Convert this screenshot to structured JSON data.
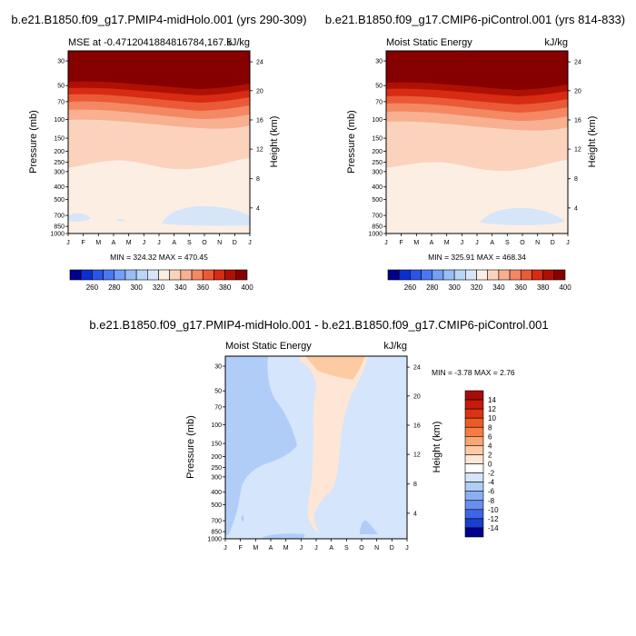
{
  "panels": [
    {
      "title": "b.e21.B1850.f09_g17.PMIP4-midHolo.001 (yrs 290-309)",
      "left_label": "MSE at -0.4712041884816784,167.5",
      "right_label": "kJ/kg",
      "ylabel": "Pressure (mb)",
      "ylabel_right": "Height (km)",
      "minmax": "MIN = 324.32 MAX = 470.45"
    },
    {
      "title": "b.e21.B1850.f09_g17.CMIP6-piControl.001 (yrs 814-833)",
      "left_label": "Moist Static Energy",
      "right_label": "kJ/kg",
      "ylabel": "Pressure (mb)",
      "ylabel_right": "Height (km)",
      "minmax": "MIN = 325.91 MAX = 468.34"
    },
    {
      "title": "b.e21.B1850.f09_g17.PMIP4-midHolo.001 - b.e21.B1850.f09_g17.CMIP6-piControl.001",
      "left_label": "Moist Static Energy",
      "right_label": "kJ/kg",
      "ylabel": "Pressure (mb)",
      "ylabel_right": "Height (km)",
      "minmax": "MIN =  -3.78 MAX =   2.76"
    }
  ],
  "chart_data": [
    {
      "type": "heatmap",
      "x_ticks": [
        "J",
        "F",
        "M",
        "A",
        "M",
        "J",
        "J",
        "A",
        "S",
        "O",
        "N",
        "D",
        "J"
      ],
      "y_ticks": [
        "30",
        "50",
        "70",
        "100",
        "150",
        "200",
        "250",
        "300",
        "400",
        "500",
        "700",
        "850",
        "1000"
      ],
      "y_right_ticks": [
        "24",
        "20",
        "16",
        "12",
        "8",
        "4"
      ],
      "colorbar_labels": [
        "260",
        "280",
        "300",
        "320",
        "340",
        "360",
        "380",
        "400"
      ],
      "colors": [
        "#00008b",
        "#0b2fcf",
        "#2a55e8",
        "#4a78f0",
        "#739ff7",
        "#98bdf7",
        "#bbd5f7",
        "#d6e6f8",
        "#fdeee4",
        "#fbd3bd",
        "#f8b090",
        "#f48862",
        "#ea5a36",
        "#d72b14",
        "#b01003",
        "#860000"
      ]
    },
    {
      "type": "heatmap",
      "x_ticks": [
        "J",
        "F",
        "M",
        "A",
        "M",
        "J",
        "J",
        "A",
        "S",
        "O",
        "N",
        "D",
        "J"
      ],
      "y_ticks": [
        "30",
        "50",
        "70",
        "100",
        "150",
        "200",
        "250",
        "300",
        "400",
        "500",
        "700",
        "850",
        "1000"
      ],
      "y_right_ticks": [
        "24",
        "20",
        "16",
        "12",
        "8",
        "4"
      ],
      "colorbar_labels": [
        "260",
        "280",
        "300",
        "320",
        "340",
        "360",
        "380",
        "400"
      ]
    },
    {
      "type": "heatmap",
      "x_ticks": [
        "J",
        "F",
        "M",
        "A",
        "M",
        "J",
        "J",
        "A",
        "S",
        "O",
        "N",
        "D",
        "J"
      ],
      "y_ticks": [
        "30",
        "50",
        "70",
        "100",
        "150",
        "200",
        "250",
        "300",
        "400",
        "500",
        "700",
        "850",
        "1000"
      ],
      "y_right_ticks": [
        "24",
        "20",
        "16",
        "12",
        "8",
        "4"
      ],
      "colorbar_labels": [
        "14",
        "12",
        "10",
        "8",
        "6",
        "4",
        "2",
        "0",
        "-2",
        "-4",
        "-6",
        "-8",
        "-10",
        "-12",
        "-14"
      ],
      "colors": [
        "#a80b0b",
        "#c81a0c",
        "#dc3412",
        "#ee5a24",
        "#f57d42",
        "#f9a574",
        "#fccaa3",
        "#fde6d5",
        "#ffffff",
        "#d5e5fb",
        "#b0cdf8",
        "#8aaff3",
        "#668fee",
        "#3e65e3",
        "#1a3fce",
        "#00008b"
      ]
    }
  ]
}
